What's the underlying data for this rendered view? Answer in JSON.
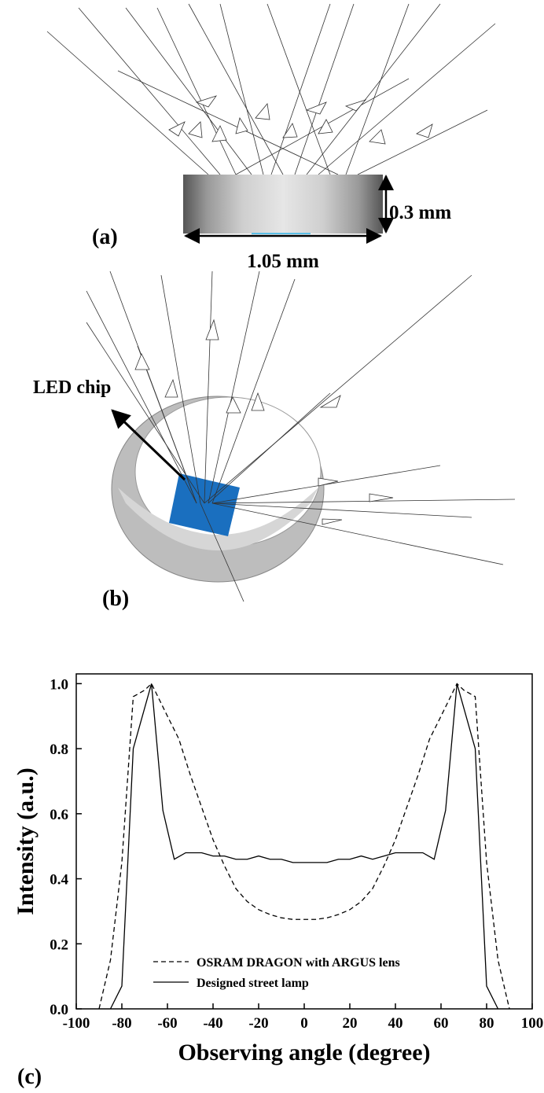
{
  "diagram": {
    "panel_a": "(a)",
    "height_label": "0.3 mm",
    "width_label": "1.05 mm",
    "chip_label": "LED chip",
    "panel_b": "(b)",
    "panel_c": "(c)"
  },
  "chart_data": {
    "type": "line",
    "x_label": "Observing angle (degree)",
    "y_label": "Intensity (a.u.)",
    "xlim": [
      -100,
      100
    ],
    "xticks": [
      -100,
      -80,
      -60,
      -40,
      -20,
      0,
      20,
      40,
      60,
      80,
      100
    ],
    "ylim": [
      0,
      1.03
    ],
    "yticks": [
      {
        "value": 0,
        "label": "0.0"
      },
      {
        "value": 0.2,
        "label": "0.2"
      },
      {
        "value": 0.4,
        "label": "0.4"
      },
      {
        "value": 0.6,
        "label": "0.6"
      },
      {
        "value": 0.8,
        "label": "0.8"
      },
      {
        "value": 1,
        "label": "1.0"
      }
    ],
    "grid": false,
    "legend": "lower center",
    "series": [
      {
        "name": "OSRAM DRAGON with ARGUS lens",
        "color": "#000",
        "dash": true,
        "x": [
          -90,
          -85,
          -80,
          -75,
          -70,
          -67,
          -60,
          -55,
          -50,
          -45,
          -40,
          -35,
          -30,
          -25,
          -20,
          -15,
          -10,
          -5,
          0,
          5,
          10,
          15,
          20,
          25,
          30,
          35,
          40,
          45,
          50,
          55,
          60,
          67,
          70,
          75,
          80,
          85,
          90
        ],
        "values": [
          0,
          0.15,
          0.45,
          0.96,
          0.98,
          1.0,
          0.9,
          0.83,
          0.72,
          0.62,
          0.52,
          0.44,
          0.37,
          0.33,
          0.305,
          0.29,
          0.28,
          0.275,
          0.275,
          0.275,
          0.28,
          0.29,
          0.305,
          0.33,
          0.37,
          0.44,
          0.52,
          0.62,
          0.72,
          0.83,
          0.9,
          1.0,
          0.98,
          0.96,
          0.45,
          0.15,
          0
        ]
      },
      {
        "name": "Designed street lamp",
        "color": "#000",
        "dash": false,
        "x": [
          -85,
          -80,
          -75,
          -67,
          -62,
          -57,
          -52,
          -45,
          -40,
          -35,
          -30,
          -25,
          -20,
          -15,
          -10,
          -5,
          0,
          5,
          10,
          15,
          20,
          25,
          30,
          35,
          40,
          45,
          52,
          57,
          62,
          67,
          75,
          80,
          85
        ],
        "values": [
          0,
          0.07,
          0.8,
          1.0,
          0.61,
          0.46,
          0.48,
          0.48,
          0.47,
          0.47,
          0.46,
          0.46,
          0.47,
          0.46,
          0.46,
          0.45,
          0.45,
          0.45,
          0.45,
          0.46,
          0.46,
          0.47,
          0.46,
          0.47,
          0.48,
          0.48,
          0.48,
          0.46,
          0.61,
          1.0,
          0.8,
          0.07,
          0
        ]
      }
    ]
  }
}
